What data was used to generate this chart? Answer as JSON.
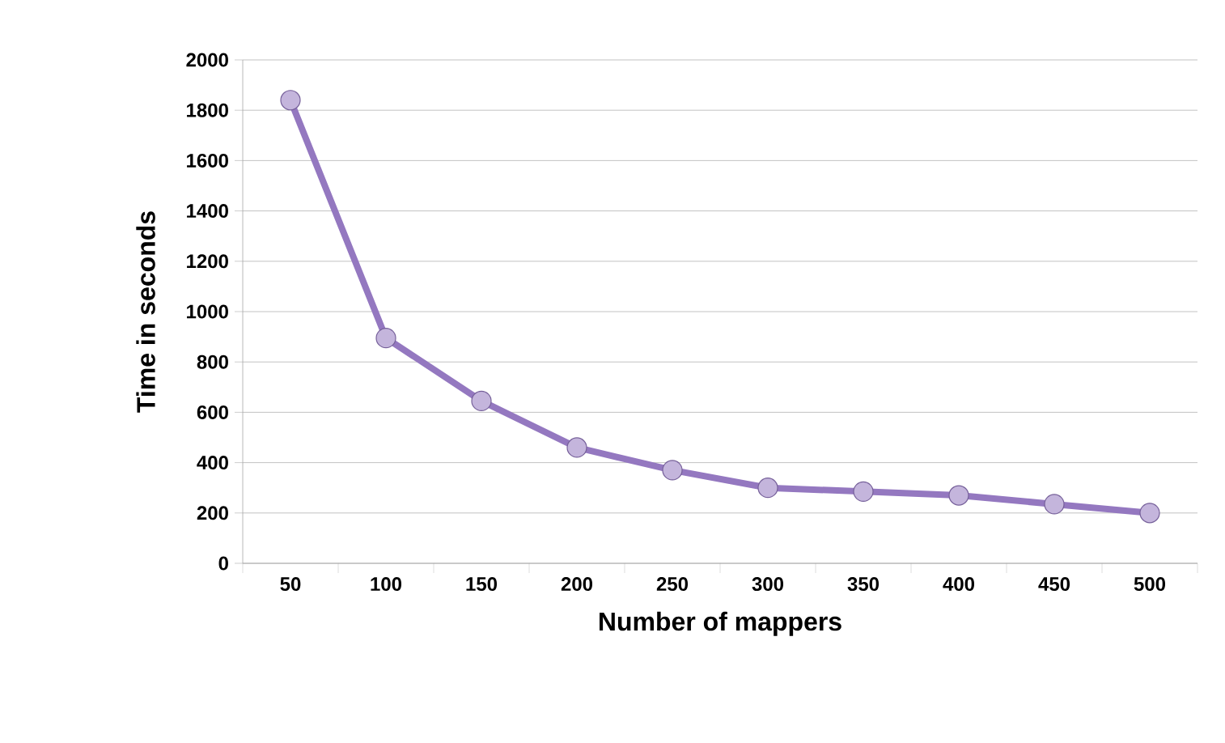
{
  "chart_data": {
    "type": "line",
    "xlabel": "Number of mappers",
    "ylabel": "Time in seconds",
    "categories": [
      "50",
      "100",
      "150",
      "200",
      "250",
      "300",
      "350",
      "400",
      "450",
      "500"
    ],
    "series": [
      {
        "color": "#9478c0",
        "values": [
          1840,
          895,
          645,
          460,
          370,
          300,
          285,
          270,
          235,
          200
        ]
      }
    ],
    "ylim": [
      0,
      2000
    ],
    "yticks": [
      0,
      200,
      400,
      600,
      800,
      1000,
      1200,
      1400,
      1600,
      1800,
      2000
    ],
    "grid": "y",
    "marker": "circle",
    "line_style": "solid"
  }
}
